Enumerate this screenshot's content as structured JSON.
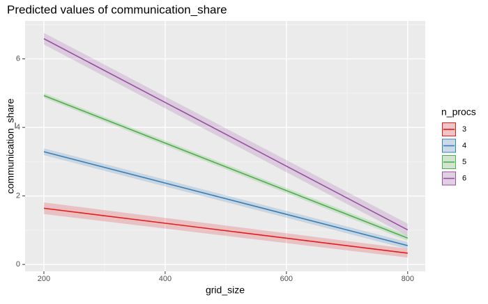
{
  "chart_data": {
    "type": "line",
    "title": "Predicted values of communication_share",
    "x_label": "grid_size",
    "y_label": "communication_share",
    "legend_title": "n_procs",
    "legend_position": "right",
    "x": [
      200,
      800
    ],
    "series": [
      {
        "name": "3",
        "color": "#e41a1c",
        "values": [
          1.64,
          0.33
        ],
        "lower": [
          1.47,
          0.2
        ],
        "upper": [
          1.81,
          0.46
        ]
      },
      {
        "name": "4",
        "color": "#377eb8",
        "values": [
          3.29,
          0.55
        ],
        "lower": [
          3.19,
          0.45
        ],
        "upper": [
          3.39,
          0.65
        ]
      },
      {
        "name": "5",
        "color": "#4daf4a",
        "values": [
          4.93,
          0.77
        ],
        "lower": [
          4.86,
          0.69
        ],
        "upper": [
          5.0,
          0.85
        ]
      },
      {
        "name": "6",
        "color": "#984ea3",
        "values": [
          6.59,
          1.01
        ],
        "lower": [
          6.42,
          0.83
        ],
        "upper": [
          6.76,
          1.19
        ]
      }
    ],
    "xlim": [
      169,
      829
    ],
    "xticks": [
      200,
      400,
      600,
      800
    ],
    "ylim": [
      -0.2,
      7.11
    ],
    "yticks": [
      0,
      2,
      4,
      6
    ],
    "grid": true
  }
}
